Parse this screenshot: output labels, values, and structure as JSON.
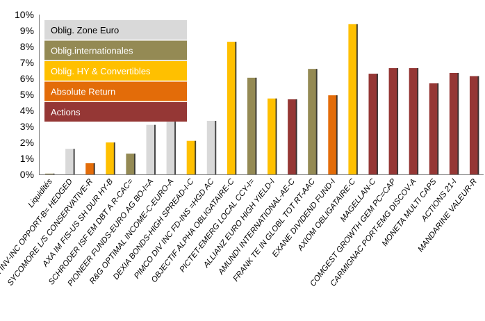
{
  "chart_data": {
    "type": "bar",
    "ylim": [
      0,
      10
    ],
    "y_ticks": [
      "0%",
      "1%",
      "2%",
      "3%",
      "4%",
      "5%",
      "6%",
      "7%",
      "8%",
      "9%",
      "10%"
    ],
    "grid": false,
    "legend_position": "top-left",
    "legend": [
      {
        "key": "euro",
        "label": "Oblig. Zone Euro",
        "color": "#d9d9d9",
        "text_color": "#000000"
      },
      {
        "key": "intl",
        "label": "Oblig.internationales",
        "color": "#948a54",
        "text_color": "#ffffff"
      },
      {
        "key": "hy",
        "label": "Oblig. HY & Convertibles",
        "color": "#ffc000",
        "text_color": "#ffffff"
      },
      {
        "key": "abs",
        "label": "Absolute Return",
        "color": "#e36c09",
        "text_color": "#ffffff"
      },
      {
        "key": "act",
        "label": "Actions",
        "color": "#953735",
        "text_color": "#ffffff"
      }
    ],
    "categories": [
      "Liquidités",
      "JPM INV-INC OPPORT-B= HEDGED",
      "SYCOMORE L/S CONSERVATIVE-R",
      "AXA IM FIS-US SH DUR HY-B",
      "SCHRODER ISF EM DBT A R-CAC=",
      "PIONEER FUNDS-EURO AG BO-I=A",
      "R&G OPTIMAL INCOME-C-EURO-A",
      "DEXIA BONDS-HIGH SPREAD-I-C",
      "PIMCO DIV INC FD-INS =HGD AC",
      "OBJECTIF ALPHA OBLIGATAIRE-C",
      "PICTET-EMERG LOCAL CCY-I=",
      "ALLIANZ EURO HIGH YIELD-I",
      "AMUNDI INTERNATIONAL-AE-C",
      "FRANK TE IN GLOBL TOT RT-AAC",
      "EXANE DIVIDEND FUND-I",
      "AXIOM OBLIGATAIRE-C",
      "MAGELLAN-C",
      "COMGEST GROWTH GEM PC=CAP",
      "CARMIGNAC PORT-EMG DISCOV-A",
      "MONETA MULTI CAPS",
      "ACTIONS 21-I",
      "MANDARINE VALEUR-R"
    ],
    "values": [
      0.05,
      1.6,
      0.7,
      2.0,
      1.3,
      3.1,
      3.3,
      2.1,
      3.35,
      8.3,
      6.05,
      4.75,
      4.7,
      6.6,
      4.95,
      9.4,
      6.3,
      6.65,
      6.65,
      5.7,
      6.35,
      6.15
    ],
    "groups": [
      "intl",
      "euro",
      "abs",
      "hy",
      "intl",
      "euro",
      "euro",
      "hy",
      "euro",
      "hy",
      "intl",
      "hy",
      "act",
      "intl",
      "abs",
      "hy",
      "act",
      "act",
      "act",
      "act",
      "act",
      "act"
    ]
  }
}
